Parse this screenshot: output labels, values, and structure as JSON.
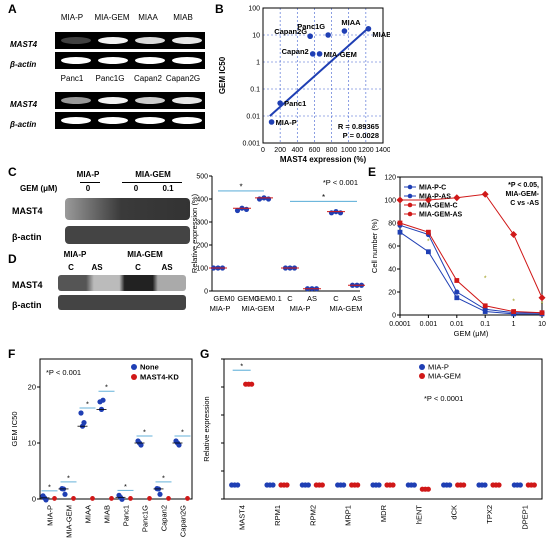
{
  "panels": {
    "A": {
      "label": "A",
      "rows1": [
        "MIA-P",
        "MIA-GEM",
        "MIAA",
        "MIAB"
      ],
      "rows2": [
        "Panc1",
        "Panc1G",
        "Capan2",
        "Capan2G"
      ],
      "gene": "MAST4",
      "control": "β-actin",
      "band_intensity_top": [
        0.25,
        0.95,
        0.85,
        0.9
      ],
      "band_intensity_bottom": [
        0.6,
        0.95,
        0.8,
        0.9
      ]
    },
    "B": {
      "label": "B",
      "ylabel": "GEM IC50",
      "xlabel": "MAST4  expression (%)",
      "stats": [
        "R = 0.89365",
        "P = 0.0028"
      ]
    },
    "C": {
      "label": "C",
      "groups": [
        "MIA-P",
        "MIA-GEM"
      ],
      "gem_label": "GEM (μM)",
      "doses": [
        "0",
        "0",
        "0.1"
      ],
      "rows": [
        "MAST4",
        "β-actin"
      ]
    },
    "D": {
      "label": "D",
      "groups": [
        "MIA-P",
        "MIA-GEM"
      ],
      "lanes": [
        "C",
        "AS",
        "C",
        "AS"
      ],
      "rows": [
        "MAST4",
        "β-actin"
      ]
    },
    "CD_chart": {
      "ylabel": "Relative expression (%)",
      "note": "*P < 0.001",
      "xlabels_top": [
        "GEM0",
        "GEM0",
        "GEM0.1",
        "C",
        "AS",
        "C",
        "AS"
      ],
      "xlabels_bottom": [
        "MIA-P",
        "MIA-GEM",
        "MIA-P",
        "MIA-GEM"
      ]
    },
    "E": {
      "label": "E",
      "note": [
        "*P < 0.05,",
        "MIA-GEM-",
        "C vs -AS"
      ]
    },
    "F": {
      "label": "F",
      "note": "*P < 0.001"
    },
    "G": {
      "label": "G",
      "note": "*P < 0.0001"
    }
  },
  "chart_data": [
    {
      "type": "scatter",
      "panel": "B",
      "title": "",
      "xlabel": "MAST4  expression (%)",
      "ylabel": "GEM IC50",
      "xlim": [
        0,
        1400
      ],
      "ylim": [
        0.001,
        100
      ],
      "yscale": "log",
      "xticks": [
        "0",
        "200",
        "400",
        "600",
        "800",
        "1000",
        "1200",
        "1400"
      ],
      "yticks": [
        "0.001",
        "0.01",
        "0.1",
        "1",
        "10",
        "100"
      ],
      "points": [
        {
          "label": "MIA-P",
          "x": 100,
          "y": 0.006
        },
        {
          "label": "Panc1",
          "x": 200,
          "y": 0.03
        },
        {
          "label": "Capan2",
          "x": 580,
          "y": 2
        },
        {
          "label": "MIA-GEM",
          "x": 660,
          "y": 2
        },
        {
          "label": "Capan2G",
          "x": 550,
          "y": 9
        },
        {
          "label": "Panc1G",
          "x": 760,
          "y": 10
        },
        {
          "label": "MIAA",
          "x": 950,
          "y": 14
        },
        {
          "label": "MIAB",
          "x": 1230,
          "y": 17
        }
      ],
      "fit_line": [
        [
          80,
          0.01
        ],
        [
          1220,
          17
        ]
      ],
      "annotations": [
        "R = 0.89365",
        "P = 0.0028"
      ]
    },
    {
      "type": "scatter",
      "panel": "C/D",
      "ylabel": "Relative expression (%)",
      "ylim": [
        0,
        500
      ],
      "yticks": [
        "0",
        "100",
        "200",
        "300",
        "400",
        "500"
      ],
      "categories": [
        "GEM0 MIA-P",
        "GEM0 MIA-GEM",
        "GEM0.1 MIA-GEM",
        "C MIA-P",
        "AS MIA-P",
        "C MIA-GEM",
        "AS MIA-GEM"
      ],
      "values": [
        [
          100,
          100,
          100
        ],
        [
          350,
          360,
          355
        ],
        [
          400,
          405,
          400
        ],
        [
          100,
          100,
          100
        ],
        [
          10,
          10,
          10
        ],
        [
          340,
          345,
          340
        ],
        [
          25,
          25,
          25
        ]
      ],
      "note": "*P < 0.001"
    },
    {
      "type": "line",
      "panel": "E",
      "xlabel": "GEM (μM)",
      "ylabel": "Cell number (%)",
      "xscale": "log",
      "x": [
        0.0001,
        0.001,
        0.01,
        0.1,
        1,
        10
      ],
      "xticks": [
        "0.0001",
        "0.001",
        "0.01",
        "0.1",
        "1",
        "10"
      ],
      "ylim": [
        0,
        120
      ],
      "yticks": [
        "0",
        "20",
        "40",
        "60",
        "80",
        "100",
        "120"
      ],
      "series": [
        {
          "name": "MIA-P-C",
          "values": [
            78,
            70,
            20,
            5,
            2,
            2
          ],
          "color": "#1f3fb4",
          "marker": "circle"
        },
        {
          "name": "MIA-P-AS",
          "values": [
            72,
            55,
            15,
            3,
            1,
            1
          ],
          "color": "#1f3fb4",
          "marker": "square"
        },
        {
          "name": "MIA-GEM-C",
          "values": [
            100,
            100,
            102,
            105,
            70,
            15
          ],
          "color": "#d01818",
          "marker": "diamond"
        },
        {
          "name": "MIA-GEM-AS",
          "values": [
            80,
            72,
            30,
            8,
            3,
            2
          ],
          "color": "#d01818",
          "marker": "square"
        }
      ],
      "note": "*P < 0.05, MIA-GEM-C vs -AS"
    },
    {
      "type": "scatter",
      "panel": "F",
      "ylabel": "GEM IC50",
      "ylim": [
        0,
        25
      ],
      "yticks": [
        "0",
        "10",
        "20"
      ],
      "categories": [
        "MIA-P",
        "MIA-GEM",
        "MIAA",
        "MIAB",
        "Panc1",
        "Panc1G",
        "Capan2",
        "Capan2G"
      ],
      "series": [
        {
          "name": "None",
          "values": [
            [
              0.2,
              0.2,
              0.2
            ],
            [
              1.5,
              1.8,
              1.2
            ],
            [
              15,
              13,
              14
            ],
            [
              17,
              16,
              18
            ],
            [
              0.3,
              0.3,
              0.3
            ],
            [
              10,
              10,
              10
            ],
            [
              1.5,
              1.8,
              1.2
            ],
            [
              10,
              10,
              10
            ]
          ],
          "color": "#1f3fb4"
        },
        {
          "name": "MAST4-KD",
          "values": [
            [
              0.1,
              0.1,
              0.1
            ],
            [
              0.1,
              0.1,
              0.1
            ],
            [
              0.1,
              0.1,
              0.1
            ],
            [
              0.1,
              0.1,
              0.1
            ],
            [
              0.1,
              0.1,
              0.1
            ],
            [
              0.1,
              0.1,
              0.1
            ],
            [
              0.1,
              0.1,
              0.1
            ],
            [
              0.1,
              0.1,
              0.1
            ]
          ],
          "color": "#d01818"
        }
      ],
      "note": "*P < 0.001"
    },
    {
      "type": "scatter",
      "panel": "G",
      "ylabel": "Relative expression",
      "ylim": [
        0,
        10
      ],
      "yticks": [
        "0",
        "2",
        "4",
        "6",
        "8",
        "10"
      ],
      "categories": [
        "MAST4",
        "RPM1",
        "RPM2",
        "MRP1",
        "MDR",
        "hENT",
        "dCK",
        "TPX2",
        "DPEP1"
      ],
      "series": [
        {
          "name": "MIA-P",
          "values": [
            1,
            1,
            1,
            1,
            1,
            1,
            1,
            1,
            1
          ],
          "color": "#1f3fb4"
        },
        {
          "name": "MIA-GEM",
          "values": [
            8.2,
            1,
            1,
            1,
            1,
            0.7,
            1,
            1,
            1
          ],
          "color": "#d01818"
        }
      ],
      "note": "*P < 0.0001"
    }
  ]
}
